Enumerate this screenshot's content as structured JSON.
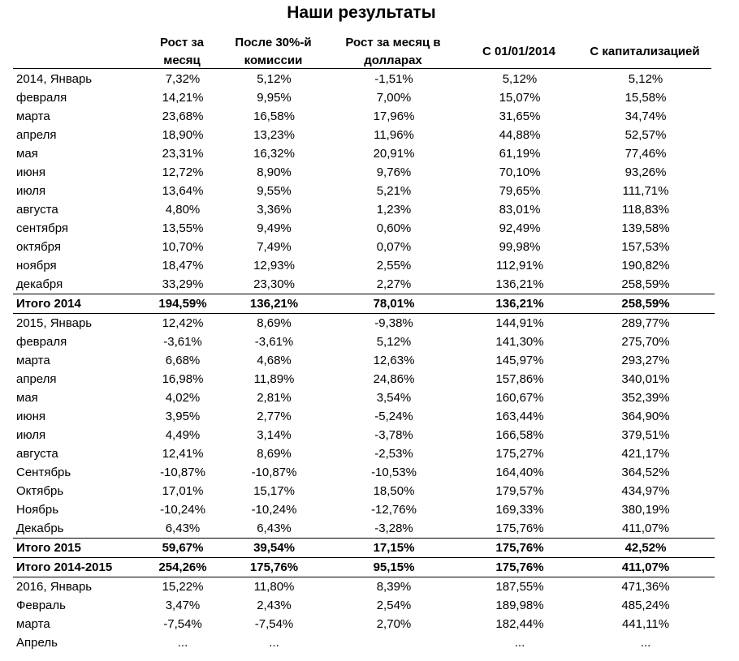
{
  "title": "Наши результаты",
  "headers": [
    "Рост за месяц",
    "После 30%-й комиссии",
    "Рост за месяц в долларах",
    "С 01/01/2014",
    "С капитализацией"
  ],
  "rows": [
    {
      "label": "2014, Январь",
      "values": [
        "7,32%",
        "5,12%",
        "-1,51%",
        "5,12%",
        "5,12%"
      ]
    },
    {
      "label": "февраля",
      "values": [
        "14,21%",
        "9,95%",
        "7,00%",
        "15,07%",
        "15,58%"
      ]
    },
    {
      "label": "марта",
      "values": [
        "23,68%",
        "16,58%",
        "17,96%",
        "31,65%",
        "34,74%"
      ]
    },
    {
      "label": "апреля",
      "values": [
        "18,90%",
        "13,23%",
        "11,96%",
        "44,88%",
        "52,57%"
      ]
    },
    {
      "label": "мая",
      "values": [
        "23,31%",
        "16,32%",
        "20,91%",
        "61,19%",
        "77,46%"
      ]
    },
    {
      "label": "июня",
      "values": [
        "12,72%",
        "8,90%",
        "9,76%",
        "70,10%",
        "93,26%"
      ]
    },
    {
      "label": "июля",
      "values": [
        "13,64%",
        "9,55%",
        "5,21%",
        "79,65%",
        "111,71%"
      ]
    },
    {
      "label": "августа",
      "values": [
        "4,80%",
        "3,36%",
        "1,23%",
        "83,01%",
        "118,83%"
      ]
    },
    {
      "label": "сентября",
      "values": [
        "13,55%",
        "9,49%",
        "0,60%",
        "92,49%",
        "139,58%"
      ]
    },
    {
      "label": "октября",
      "values": [
        "10,70%",
        "7,49%",
        "0,07%",
        "99,98%",
        "157,53%"
      ]
    },
    {
      "label": "ноября",
      "values": [
        "18,47%",
        "12,93%",
        "2,55%",
        "112,91%",
        "190,82%"
      ]
    },
    {
      "label": "декабря",
      "values": [
        "33,29%",
        "23,30%",
        "2,27%",
        "136,21%",
        "258,59%"
      ]
    },
    {
      "label": "Итого 2014",
      "values": [
        "194,59%",
        "136,21%",
        "78,01%",
        "136,21%",
        "258,59%"
      ],
      "total": true
    },
    {
      "label": "2015, Январь",
      "values": [
        "12,42%",
        "8,69%",
        "-9,38%",
        "144,91%",
        "289,77%"
      ]
    },
    {
      "label": "февраля",
      "values": [
        "-3,61%",
        "-3,61%",
        "5,12%",
        "141,30%",
        "275,70%"
      ]
    },
    {
      "label": "марта",
      "values": [
        "6,68%",
        "4,68%",
        "12,63%",
        "145,97%",
        "293,27%"
      ]
    },
    {
      "label": "апреля",
      "values": [
        "16,98%",
        "11,89%",
        "24,86%",
        "157,86%",
        "340,01%"
      ]
    },
    {
      "label": "мая",
      "values": [
        "4,02%",
        "2,81%",
        "3,54%",
        "160,67%",
        "352,39%"
      ]
    },
    {
      "label": "июня",
      "values": [
        "3,95%",
        "2,77%",
        "-5,24%",
        "163,44%",
        "364,90%"
      ]
    },
    {
      "label": "июля",
      "values": [
        "4,49%",
        "3,14%",
        "-3,78%",
        "166,58%",
        "379,51%"
      ]
    },
    {
      "label": "августа",
      "values": [
        "12,41%",
        "8,69%",
        "-2,53%",
        "175,27%",
        "421,17%"
      ]
    },
    {
      "label": "Сентябрь",
      "values": [
        "-10,87%",
        "-10,87%",
        "-10,53%",
        "164,40%",
        "364,52%"
      ]
    },
    {
      "label": "Октябрь",
      "values": [
        "17,01%",
        "15,17%",
        "18,50%",
        "179,57%",
        "434,97%"
      ]
    },
    {
      "label": "Ноябрь",
      "values": [
        "-10,24%",
        "-10,24%",
        "-12,76%",
        "169,33%",
        "380,19%"
      ]
    },
    {
      "label": "Декабрь",
      "values": [
        "6,43%",
        "6,43%",
        "-3,28%",
        "175,76%",
        "411,07%"
      ]
    },
    {
      "label": "Итого 2015",
      "values": [
        "59,67%",
        "39,54%",
        "17,15%",
        "175,76%",
        "42,52%"
      ],
      "total": true
    },
    {
      "label": "Итого 2014-2015",
      "values": [
        "254,26%",
        "175,76%",
        "95,15%",
        "175,76%",
        "411,07%"
      ],
      "total": true
    },
    {
      "label": "2016, Январь",
      "values": [
        "15,22%",
        "11,80%",
        "8,39%",
        "187,55%",
        "471,36%"
      ]
    },
    {
      "label": "Февраль",
      "values": [
        "3,47%",
        "2,43%",
        "2,54%",
        "189,98%",
        "485,24%"
      ]
    },
    {
      "label": "марта",
      "values": [
        "-7,54%",
        "-7,54%",
        "2,70%",
        "182,44%",
        "441,11%"
      ]
    },
    {
      "label": "Апрель",
      "values": [
        "...",
        "...",
        "",
        "...",
        "..."
      ]
    }
  ]
}
